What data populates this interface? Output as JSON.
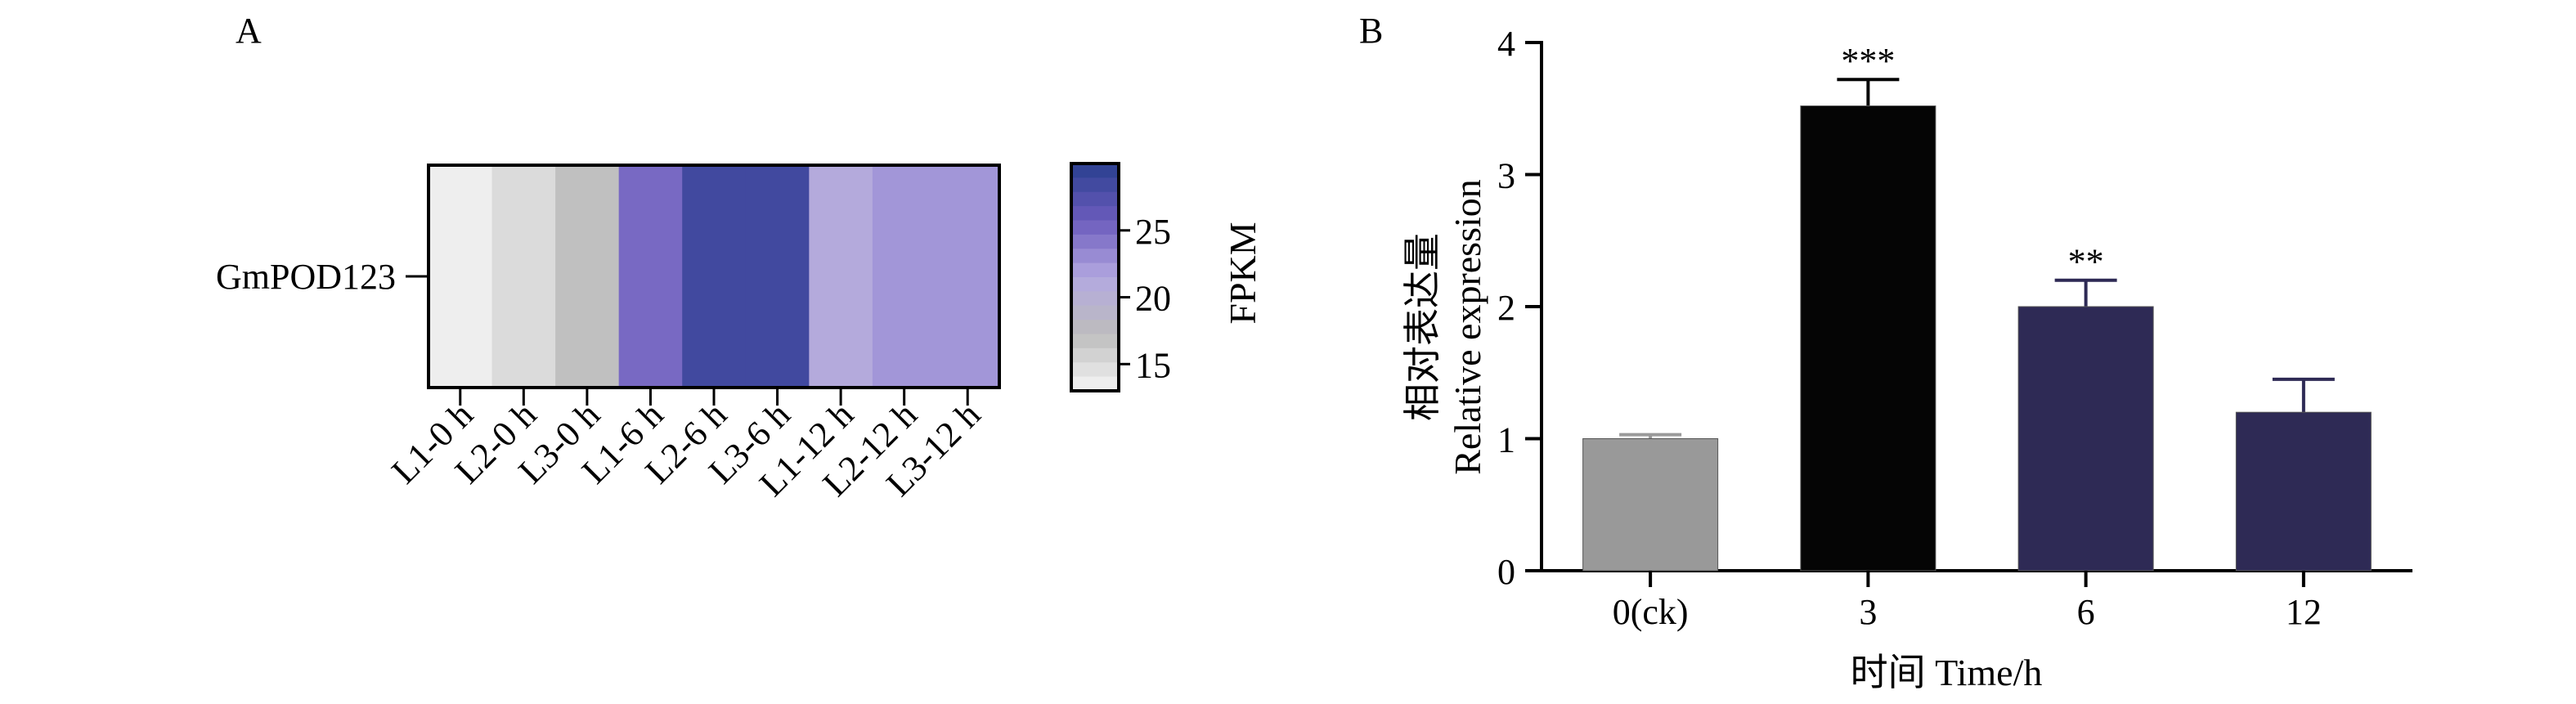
{
  "chart_data": [
    {
      "panel": "A",
      "type": "heatmap",
      "row_labels": [
        "GmPOD123"
      ],
      "columns": [
        "L1-0 h",
        "L2-0 h",
        "L3-0 h",
        "L1-6 h",
        "L2-6 h",
        "L3-6 h",
        "L1-12 h",
        "L2-12 h",
        "L3-12 h"
      ],
      "values": [
        [
          13.5,
          15,
          17,
          25,
          28.5,
          28.5,
          21,
          22.5,
          22.5
        ]
      ],
      "colorbar": {
        "label": "FPKM",
        "ticks": [
          15,
          20,
          25
        ],
        "range": [
          13,
          30
        ],
        "colors": [
          "#f5f5f5",
          "#bdbdbd",
          "#b3a8e0",
          "#6b5bbd",
          "#2a3f8f"
        ]
      }
    },
    {
      "panel": "B",
      "type": "bar",
      "categories": [
        "0(ck)",
        "3",
        "6",
        "12"
      ],
      "values": [
        1.0,
        3.52,
        2.0,
        1.2
      ],
      "errors": [
        0.03,
        0.2,
        0.2,
        0.25
      ],
      "significance": [
        "",
        "***",
        "**",
        ""
      ],
      "colors": [
        "#999999",
        "#050505",
        "#2e2a55",
        "#2e2a55"
      ],
      "ylabel_cn": "相对表达量",
      "ylabel_en": "Relative expression",
      "xlabel": "时间 Time/h",
      "ylim": [
        0,
        4
      ],
      "yticks": [
        0,
        1,
        2,
        3,
        4
      ]
    }
  ]
}
